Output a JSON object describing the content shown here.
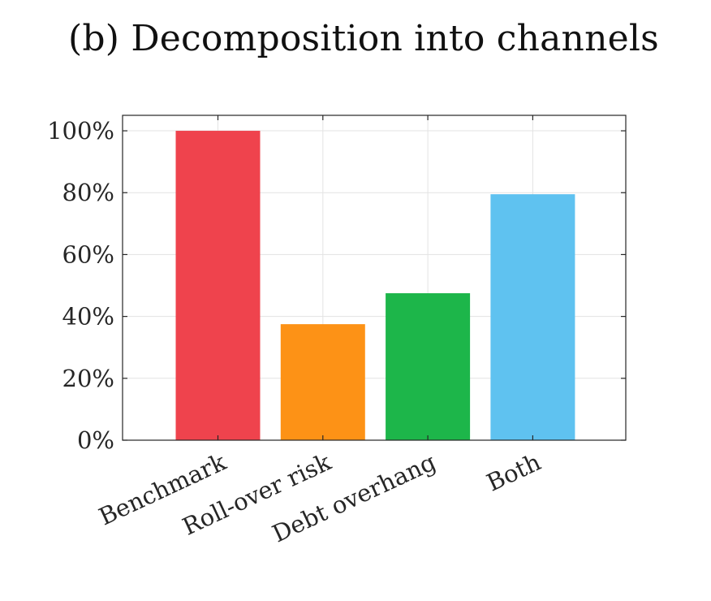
{
  "chart_data": {
    "type": "bar",
    "title": "(b) Decomposition into channels",
    "categories": [
      "Benchmark",
      "Roll-over risk",
      "Debt overhang",
      "Both"
    ],
    "values": [
      100,
      37.5,
      47.5,
      79.5
    ],
    "colors": [
      "#ef434d",
      "#fd9216",
      "#1db64a",
      "#5fc2f0"
    ],
    "ylim": [
      0,
      105
    ],
    "yticks": [
      0,
      20,
      40,
      60,
      80,
      100
    ],
    "ytick_labels": [
      "0%",
      "20%",
      "40%",
      "60%",
      "80%",
      "100%"
    ],
    "xlabel": "",
    "ylabel": "",
    "grid": true
  }
}
